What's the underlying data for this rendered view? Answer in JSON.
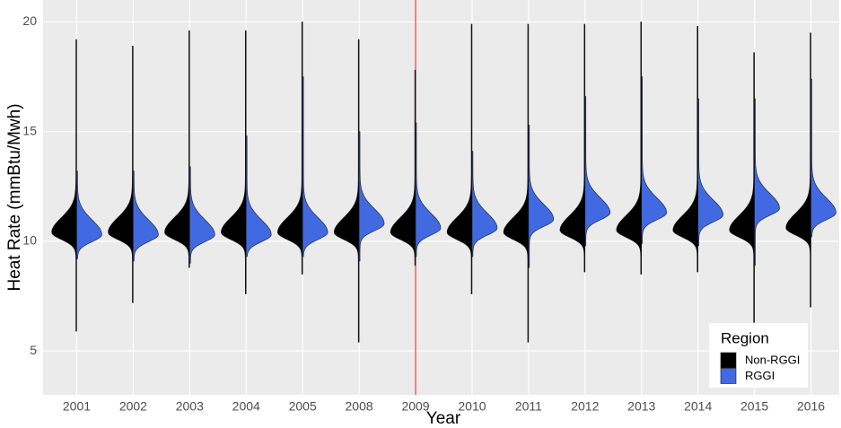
{
  "chart_data": {
    "type": "split-violin",
    "x_label": "Year",
    "y_label": "Heat Rate (mmBtu/Mwh)",
    "categories": [
      "2001",
      "2002",
      "2003",
      "2004",
      "2005",
      "2008",
      "2009",
      "2010",
      "2011",
      "2012",
      "2013",
      "2014",
      "2015",
      "2016"
    ],
    "ylim": [
      3,
      21
    ],
    "yticks": [
      5,
      10,
      15,
      20
    ],
    "grid": true,
    "vline": {
      "x": "2009",
      "color": "#e41a1c"
    },
    "legend": {
      "title": "Region",
      "position": "bottom-right"
    },
    "series": [
      {
        "name": "Non-RGGI",
        "color": "#000000",
        "values": [
          {
            "min": 5.9,
            "peak": 10.4,
            "max": 19.2
          },
          {
            "min": 7.2,
            "peak": 10.4,
            "max": 18.9
          },
          {
            "min": 8.8,
            "peak": 10.4,
            "max": 19.6
          },
          {
            "min": 7.6,
            "peak": 10.4,
            "max": 19.6
          },
          {
            "min": 8.5,
            "peak": 10.4,
            "max": 20.0
          },
          {
            "min": 5.4,
            "peak": 10.4,
            "max": 19.2
          },
          {
            "min": 8.9,
            "peak": 10.4,
            "max": 17.8
          },
          {
            "min": 7.6,
            "peak": 10.4,
            "max": 19.9
          },
          {
            "min": 5.4,
            "peak": 10.4,
            "max": 19.9
          },
          {
            "min": 8.6,
            "peak": 10.5,
            "max": 19.9
          },
          {
            "min": 8.5,
            "peak": 10.5,
            "max": 20.0
          },
          {
            "min": 8.6,
            "peak": 10.5,
            "max": 19.8
          },
          {
            "min": 6.3,
            "peak": 10.5,
            "max": 18.6
          },
          {
            "min": 7.0,
            "peak": 10.6,
            "max": 19.5
          }
        ]
      },
      {
        "name": "RGGI",
        "color": "#4169e1",
        "values": [
          {
            "min": 9.2,
            "peak": 10.3,
            "max": 13.2
          },
          {
            "min": 9.1,
            "peak": 10.3,
            "max": 13.2
          },
          {
            "min": 9.0,
            "peak": 10.3,
            "max": 13.4
          },
          {
            "min": 9.3,
            "peak": 10.3,
            "max": 14.8
          },
          {
            "min": 9.3,
            "peak": 10.4,
            "max": 17.5
          },
          {
            "min": 9.1,
            "peak": 10.8,
            "max": 15.0
          },
          {
            "min": 9.3,
            "peak": 10.6,
            "max": 15.4
          },
          {
            "min": 9.3,
            "peak": 10.6,
            "max": 14.1
          },
          {
            "min": 8.8,
            "peak": 11.0,
            "max": 15.3
          },
          {
            "min": 9.8,
            "peak": 11.3,
            "max": 16.6
          },
          {
            "min": 9.9,
            "peak": 11.3,
            "max": 17.5
          },
          {
            "min": 9.8,
            "peak": 11.2,
            "max": 16.5
          },
          {
            "min": 8.9,
            "peak": 11.5,
            "max": 16.5
          },
          {
            "min": 10.2,
            "peak": 11.3,
            "max": 17.4
          }
        ]
      }
    ]
  }
}
